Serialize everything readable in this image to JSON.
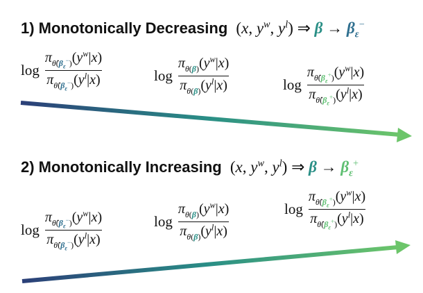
{
  "section1": {
    "title": "1) Monotonically Decreasing",
    "expr_left": "(x, y^w, y^l) ⇒ β → β_ε^−",
    "terms": [
      "log π_θ̂(β_ε^−)(y^w|x) / π_θ̂(β_ε^−)(y^l|x)",
      "log π_θ(β)(y^w|x) / π_θ(β)(y^l|x)",
      "log π_θ̂(β_ε^+)(y^w|x) / π_θ̂(β_ε^+)(y^l|x)"
    ]
  },
  "section2": {
    "title": "2) Monotonically Increasing",
    "expr_left": "(x, y^w, y^l) ⇒ β → β_ε^+",
    "terms": [
      "log π_θ̂(β_ε^−)(y^w|x) / π_θ̂(β_ε^−)(y^l|x)",
      "log π_θ(β)(y^w|x) / π_θ(β)(y^l|x)",
      "log π_θ̂(β_ε^+)(y^w|x) / π_θ̂(β_ε^+)(y^l|x)"
    ]
  },
  "colors": {
    "arrow_start": "#2b3f78",
    "arrow_mid": "#2a8f86",
    "arrow_end": "#6cc56a",
    "beta_minus": "#2f6f8f",
    "beta_plus": "#5fbf72"
  }
}
